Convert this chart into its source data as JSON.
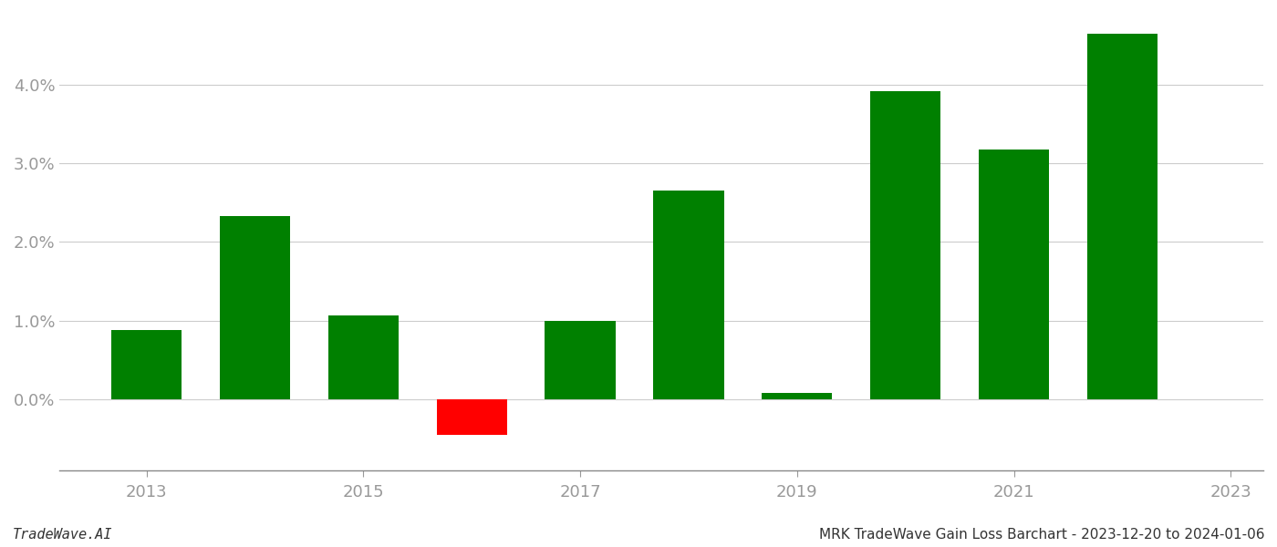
{
  "years": [
    2013,
    2014,
    2015,
    2016,
    2017,
    2018,
    2019,
    2020,
    2021,
    2022
  ],
  "values": [
    0.0088,
    0.0233,
    0.0107,
    -0.0045,
    0.01,
    0.0265,
    0.0008,
    0.0392,
    0.0317,
    0.0465
  ],
  "colors": [
    "#008000",
    "#008000",
    "#008000",
    "#ff0000",
    "#008000",
    "#008000",
    "#008000",
    "#008000",
    "#008000",
    "#008000"
  ],
  "bar_width": 0.65,
  "ylim": [
    -0.009,
    0.049
  ],
  "yticks": [
    0.0,
    0.01,
    0.02,
    0.03,
    0.04
  ],
  "xtick_labels": [
    "2013",
    "2015",
    "2017",
    "2019",
    "2021",
    "2023"
  ],
  "xtick_positions": [
    2013,
    2015,
    2017,
    2019,
    2021,
    2023
  ],
  "xlim": [
    2012.2,
    2023.3
  ],
  "background_color": "#ffffff",
  "grid_color": "#cccccc",
  "footer_left": "TradeWave.AI",
  "footer_right": "MRK TradeWave Gain Loss Barchart - 2023-12-20 to 2024-01-06",
  "footer_fontsize": 11,
  "tick_label_color": "#999999",
  "spine_color": "#888888",
  "tick_label_size": 13
}
